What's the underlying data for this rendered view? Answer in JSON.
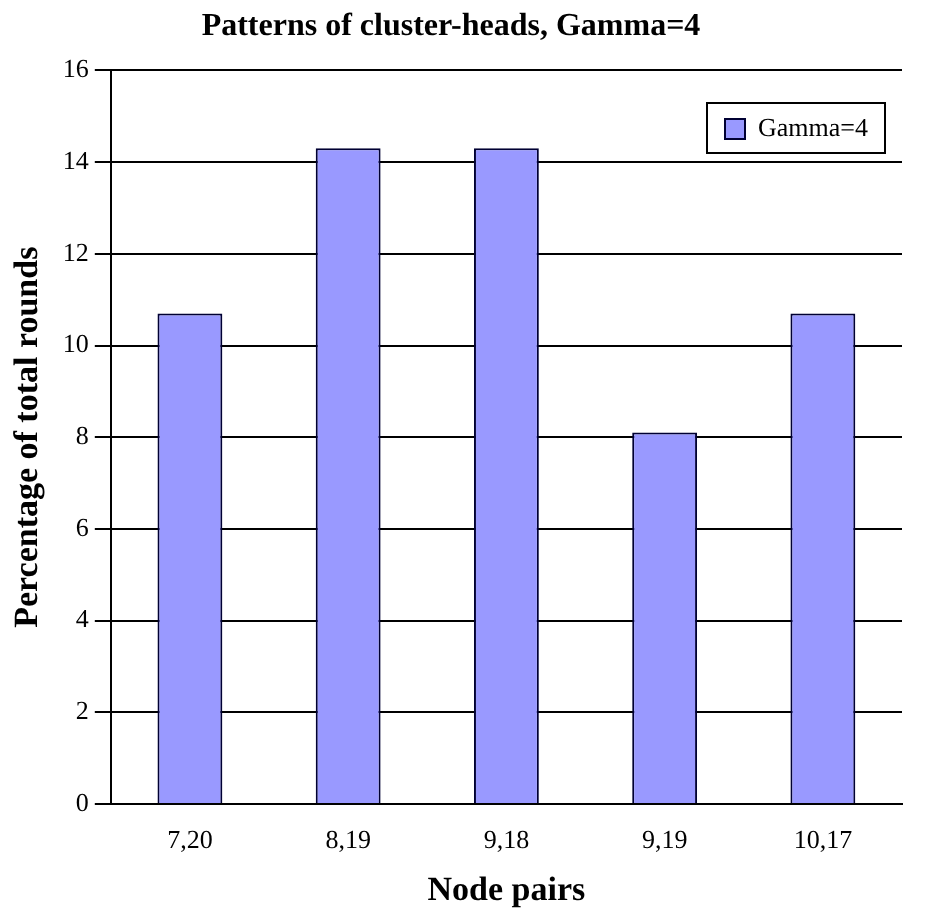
{
  "chart_data": {
    "type": "bar",
    "title": "Patterns of cluster-heads, Gamma=4",
    "xlabel": "Node pairs",
    "ylabel": "Percentage of total rounds",
    "categories": [
      "7,20",
      "8,19",
      "9,18",
      "9,19",
      "10,17"
    ],
    "series": [
      {
        "name": "Gamma=4",
        "color": "#9999ff",
        "values": [
          10.7,
          14.3,
          14.3,
          8.1,
          10.7
        ]
      }
    ],
    "ylim": [
      0,
      16
    ],
    "yticks": [
      0,
      2,
      4,
      6,
      8,
      10,
      12,
      14,
      16
    ],
    "grid": "y",
    "legend": "top right"
  }
}
